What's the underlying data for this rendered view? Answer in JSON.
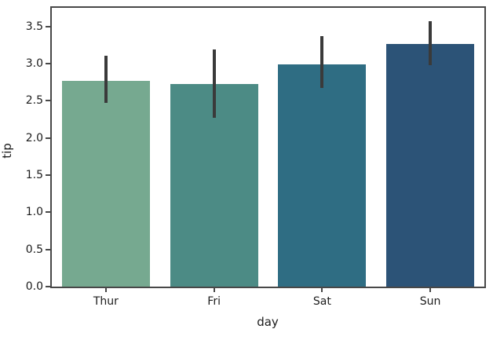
{
  "chart_data": {
    "type": "bar",
    "title": "",
    "xlabel": "day",
    "ylabel": "tip",
    "categories": [
      "Thur",
      "Fri",
      "Sat",
      "Sun"
    ],
    "values": [
      2.77,
      2.73,
      2.99,
      3.26
    ],
    "error_low": [
      2.47,
      2.27,
      2.67,
      2.98
    ],
    "error_high": [
      3.11,
      3.19,
      3.37,
      3.57
    ],
    "bar_colors": [
      "#76A990",
      "#4C8B85",
      "#2F6D83",
      "#2C5377"
    ],
    "error_bar_color": "#3A3A3A",
    "axis_color": "#484848",
    "text_color": "#1C1C1C",
    "background_color": "#FFFFFF",
    "ylim": [
      0,
      3.75
    ],
    "yticks": [
      0,
      0.5,
      1,
      1.5,
      2,
      2.5,
      3,
      3.5
    ],
    "ytick_labels": [
      "0.0",
      "0.5",
      "1.0",
      "1.5",
      "2.0",
      "2.5",
      "3.0",
      "3.5"
    ],
    "grid": false,
    "legend_position": "none"
  }
}
